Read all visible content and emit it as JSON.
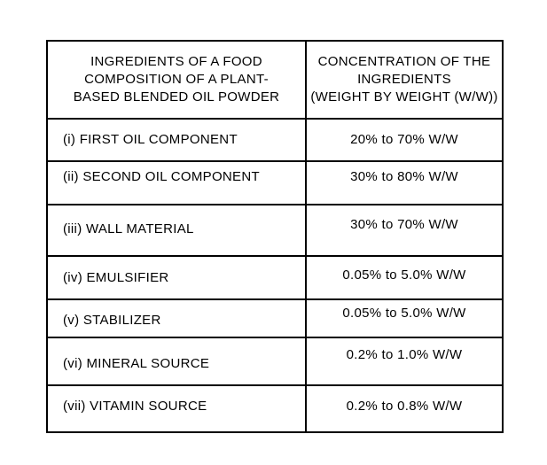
{
  "table": {
    "colors": {
      "border": "#000000",
      "text": "#000000",
      "background": "#ffffff"
    },
    "header": {
      "ingredients": "INGREDIENTS OF A FOOD\nCOMPOSITION OF A PLANT-\nBASED BLENDED OIL POWDER",
      "concentration": "CONCENTRATION OF THE\nINGREDIENTS\n(WEIGHT BY WEIGHT (W/W))"
    },
    "rows": [
      {
        "ingredient": "(i) FIRST OIL COMPONENT",
        "concentration": "20% to 70% W/W"
      },
      {
        "ingredient": "(ii) SECOND OIL COMPONENT",
        "concentration": "30% to 80% W/W"
      },
      {
        "ingredient": "(iii) WALL MATERIAL",
        "concentration": "30% to 70% W/W"
      },
      {
        "ingredient": "(iv) EMULSIFIER",
        "concentration": "0.05% to 5.0% W/W"
      },
      {
        "ingredient": "(v) STABILIZER",
        "concentration": "0.05% to 5.0% W/W"
      },
      {
        "ingredient": "(vi) MINERAL SOURCE",
        "concentration": "0.2% to 1.0% W/W"
      },
      {
        "ingredient": "(vii) VITAMIN SOURCE",
        "concentration": "0.2% to 0.8% W/W"
      }
    ]
  }
}
